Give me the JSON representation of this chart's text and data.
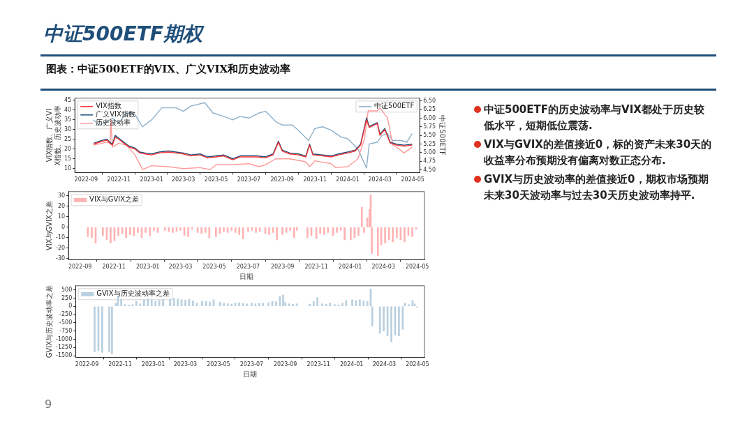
{
  "chart_data": [
    {
      "type": "line",
      "title": "中证500ETF期权",
      "subtitle": "图表：中证500ETF的VIX、广义VIX和历史波动率",
      "ylabel": "VIX指数、广义VIX指数、历史波动率",
      "y2label": "中证500ETF",
      "legend": "top left",
      "grid": false,
      "xlim": [
        "2022-08-11",
        "2024-05-14"
      ],
      "xticks": [
        "2022-09",
        "2022-11",
        "2023-01",
        "2023-03",
        "2023-05",
        "2023-07",
        "2023-09",
        "2023-11",
        "2024-01",
        "2024-03",
        "2024-05"
      ],
      "ylim": [
        8,
        46
      ],
      "yticks": [
        10,
        15,
        20,
        25,
        30,
        35,
        40,
        45
      ],
      "y2lim": [
        4.42,
        6.58
      ],
      "y2ticks": [
        {
          "value": 4.5,
          "label": "4.50"
        },
        {
          "value": 4.75,
          "label": "4.75"
        },
        {
          "value": 5,
          "label": "5.00"
        },
        {
          "value": 5.25,
          "label": "5.25"
        },
        {
          "value": 5.5,
          "label": "5.50"
        },
        {
          "value": 5.75,
          "label": "5.75"
        },
        {
          "value": 6,
          "label": "6.00"
        },
        {
          "value": 6.25,
          "label": "6.25"
        },
        {
          "value": 6.5,
          "label": "6.50"
        }
      ],
      "series": [
        {
          "name": "VIX指数",
          "color": "#ff3333",
          "x": [
            "2022-09-15",
            "2022-10-01",
            "2022-10-10",
            "2022-10-15",
            "2022-10-20",
            "2022-10-25",
            "2022-11-01",
            "2022-11-10",
            "2022-11-20",
            "2022-12-01",
            "2022-12-10",
            "2022-12-20",
            "2023-01-01",
            "2023-01-15",
            "2023-02-01",
            "2023-02-15",
            "2023-03-01",
            "2023-03-15",
            "2023-04-01",
            "2023-04-15",
            "2023-05-01",
            "2023-05-15",
            "2023-06-01",
            "2023-06-15",
            "2023-07-01",
            "2023-07-15",
            "2023-08-01",
            "2023-08-15",
            "2023-08-25",
            "2023-09-01",
            "2023-09-15",
            "2023-10-01",
            "2023-10-15",
            "2023-10-22",
            "2023-10-28",
            "2023-11-15",
            "2023-12-01",
            "2023-12-15",
            "2024-01-01",
            "2024-01-15",
            "2024-01-25",
            "2024-02-05",
            "2024-02-10",
            "2024-02-25",
            "2024-03-01",
            "2024-03-10",
            "2024-03-20",
            "2024-04-01",
            "2024-04-15",
            "2024-04-30"
          ],
          "values": [
            22.5,
            24,
            24.5,
            23,
            22,
            26,
            25,
            23,
            21,
            20,
            18,
            17.5,
            17,
            18,
            18.5,
            18,
            17.5,
            16.5,
            17,
            15.5,
            16,
            16.5,
            14.5,
            16,
            16,
            16,
            15.5,
            17,
            23.5,
            19,
            17.5,
            17,
            16,
            22,
            17,
            16.5,
            16,
            17,
            18,
            19,
            22,
            35,
            31,
            33,
            27,
            30,
            23,
            22,
            21.5,
            22
          ]
        },
        {
          "name": "广义VIX指数",
          "color": "#1f4e79",
          "x": [
            "2022-09-15",
            "2022-10-01",
            "2022-10-10",
            "2022-10-15",
            "2022-10-20",
            "2022-10-25",
            "2022-11-01",
            "2022-11-10",
            "2022-11-20",
            "2022-12-01",
            "2022-12-10",
            "2022-12-20",
            "2023-01-01",
            "2023-01-15",
            "2023-02-01",
            "2023-02-15",
            "2023-03-01",
            "2023-03-15",
            "2023-04-01",
            "2023-04-15",
            "2023-05-01",
            "2023-05-15",
            "2023-06-01",
            "2023-06-15",
            "2023-07-01",
            "2023-07-15",
            "2023-08-01",
            "2023-08-15",
            "2023-08-25",
            "2023-09-01",
            "2023-09-15",
            "2023-10-01",
            "2023-10-15",
            "2023-10-22",
            "2023-10-28",
            "2023-11-15",
            "2023-12-01",
            "2023-12-15",
            "2024-01-01",
            "2024-01-15",
            "2024-01-25",
            "2024-02-05",
            "2024-02-10",
            "2024-02-25",
            "2024-03-01",
            "2024-03-10",
            "2024-03-20",
            "2024-04-01",
            "2024-04-15",
            "2024-04-30"
          ],
          "values": [
            23,
            24.5,
            25,
            23.5,
            22.5,
            27,
            25.5,
            23.5,
            21.5,
            20.5,
            18.5,
            18,
            17.5,
            18.5,
            19,
            18.5,
            18,
            17,
            17.5,
            16,
            16.5,
            17,
            15,
            16.5,
            16.5,
            16.5,
            16,
            17.5,
            24,
            19.5,
            18,
            17.5,
            16.5,
            22.5,
            17.5,
            17,
            16.5,
            17.5,
            18.5,
            19.5,
            22.5,
            36,
            31.5,
            33.5,
            27.5,
            30.5,
            23.5,
            22.5,
            22,
            22.5
          ]
        },
        {
          "name": "历史波动率",
          "color": "#ff9999",
          "x": [
            "2022-09-15",
            "2022-10-10",
            "2022-10-16",
            "2022-10-17",
            "2022-10-20",
            "2022-11-01",
            "2022-11-15",
            "2022-12-01",
            "2022-12-15",
            "2023-01-01",
            "2023-02-01",
            "2023-03-01",
            "2023-04-01",
            "2023-04-20",
            "2023-05-01",
            "2023-06-01",
            "2023-07-01",
            "2023-07-20",
            "2023-08-01",
            "2023-08-20",
            "2023-09-15",
            "2023-10-15",
            "2023-10-22",
            "2023-11-01",
            "2023-12-01",
            "2023-12-10",
            "2024-01-01",
            "2024-01-20",
            "2024-02-01",
            "2024-02-08",
            "2024-02-25",
            "2024-03-01",
            "2024-03-15",
            "2024-03-25",
            "2024-04-01",
            "2024-04-15",
            "2024-04-30"
          ],
          "values": [
            22,
            23.5,
            23,
            35,
            21,
            23,
            22,
            17,
            9.5,
            11.5,
            11,
            10,
            10.5,
            9.5,
            12,
            12,
            12.5,
            11,
            12,
            15,
            15,
            13.5,
            11,
            14,
            12.5,
            10.5,
            11,
            15,
            25,
            39.5,
            39.5,
            41,
            36,
            22,
            21,
            18,
            21
          ]
        },
        {
          "name": "中证500ETF",
          "color": "#8fb0c8",
          "axis": "y2",
          "x": [
            "2022-09-15",
            "2022-09-25",
            "2022-10-10",
            "2022-10-20",
            "2022-11-01",
            "2022-11-15",
            "2022-12-01",
            "2022-12-15",
            "2023-01-01",
            "2023-01-20",
            "2023-02-15",
            "2023-03-01",
            "2023-03-15",
            "2023-04-10",
            "2023-04-25",
            "2023-05-15",
            "2023-06-01",
            "2023-06-15",
            "2023-07-01",
            "2023-07-20",
            "2023-08-01",
            "2023-08-20",
            "2023-09-01",
            "2023-09-20",
            "2023-10-01",
            "2023-10-20",
            "2023-11-01",
            "2023-11-15",
            "2023-12-01",
            "2023-12-20",
            "2024-01-01",
            "2024-01-20",
            "2024-02-05",
            "2024-02-10",
            "2024-02-25",
            "2024-03-05",
            "2024-03-15",
            "2024-03-25",
            "2024-04-10",
            "2024-04-20",
            "2024-04-30"
          ],
          "values": [
            5.95,
            5.8,
            5.9,
            6.0,
            5.85,
            6.15,
            6.1,
            5.75,
            5.95,
            6.3,
            6.3,
            6.2,
            6.35,
            6.45,
            6.15,
            6.05,
            5.95,
            6.05,
            6.0,
            6.15,
            6.2,
            5.9,
            5.8,
            5.8,
            5.65,
            5.35,
            5.7,
            5.75,
            5.65,
            5.45,
            5.4,
            5.1,
            4.55,
            5.25,
            5.3,
            5.5,
            5.55,
            5.35,
            5.35,
            5.3,
            5.55
          ]
        }
      ]
    },
    {
      "type": "bar",
      "xlabel": "日期",
      "ylabel": "VIX与GVIX之差",
      "legend": "top left",
      "grid": false,
      "xlim": [
        "2022-08-11",
        "2024-05-14"
      ],
      "xticks": [
        "2022-09",
        "2022-11",
        "2023-01",
        "2023-03",
        "2023-05",
        "2023-07",
        "2023-09",
        "2023-11",
        "2024-01",
        "2024-03",
        "2024-05"
      ],
      "ylim": [
        -31,
        34
      ],
      "yticks": [
        -30,
        -20,
        -10,
        0,
        10,
        20,
        30
      ],
      "series": [
        {
          "name": "VIX与GVIX之差",
          "color": "#ffb3b3",
          "x": [
            "2022-09-15",
            "2022-09-22",
            "2022-09-29",
            "2022-10-12",
            "2022-10-19",
            "2022-10-26",
            "2022-11-02",
            "2022-11-09",
            "2022-11-16",
            "2022-11-23",
            "2022-11-30",
            "2022-12-07",
            "2022-12-14",
            "2022-12-21",
            "2022-12-28",
            "2023-01-05",
            "2023-01-12",
            "2023-01-19",
            "2023-02-01",
            "2023-02-08",
            "2023-02-15",
            "2023-02-22",
            "2023-03-01",
            "2023-03-08",
            "2023-03-15",
            "2023-03-22",
            "2023-04-01",
            "2023-04-08",
            "2023-04-15",
            "2023-04-22",
            "2023-05-04",
            "2023-05-11",
            "2023-05-18",
            "2023-05-25",
            "2023-06-01",
            "2023-06-08",
            "2023-06-15",
            "2023-06-22",
            "2023-07-01",
            "2023-07-08",
            "2023-07-15",
            "2023-07-22",
            "2023-08-01",
            "2023-08-08",
            "2023-08-15",
            "2023-08-22",
            "2023-09-01",
            "2023-09-08",
            "2023-09-15",
            "2023-09-22",
            "2023-09-27",
            "2023-10-16",
            "2023-10-23",
            "2023-11-01",
            "2023-11-08",
            "2023-11-15",
            "2023-11-22",
            "2023-12-01",
            "2023-12-08",
            "2023-12-15",
            "2023-12-22",
            "2024-01-02",
            "2024-01-09",
            "2024-01-16",
            "2024-01-22",
            "2024-01-26",
            "2024-02-01",
            "2024-02-05",
            "2024-02-07",
            "2024-02-09",
            "2024-02-20",
            "2024-02-26",
            "2024-03-04",
            "2024-03-11",
            "2024-03-18",
            "2024-03-25",
            "2024-04-01",
            "2024-04-08",
            "2024-04-15",
            "2024-04-22",
            "2024-04-29"
          ],
          "values": [
            -9,
            -10,
            -15,
            -8,
            -12,
            -15,
            -13,
            -8,
            -6,
            -10,
            -7,
            -8,
            -5,
            -10,
            -5,
            -8,
            -3,
            -5,
            -3,
            -4,
            -5,
            -4,
            -3,
            -8,
            -9,
            -2,
            -5,
            -6,
            -5,
            -10,
            -9,
            -6,
            -4,
            -5,
            -3,
            -5,
            -7,
            -11,
            -4,
            -3,
            -5,
            -4,
            -6,
            -7,
            -5,
            -12,
            -7,
            -5,
            -3,
            -10,
            -3,
            -10,
            -8,
            -11,
            -6,
            -7,
            -5,
            -8,
            -5,
            -3,
            -12,
            -12,
            -10,
            -8,
            19,
            -5,
            9,
            17,
            31,
            -25,
            -27,
            -17,
            -15,
            -12,
            -14,
            -10,
            -12,
            -14,
            -8,
            -9,
            -2
          ]
        }
      ]
    },
    {
      "type": "bar",
      "xlabel": "日期",
      "ylabel": "GVIX与历史波动率之差",
      "legend": "top left",
      "grid": false,
      "xlim": [
        "2022-08-11",
        "2024-05-14"
      ],
      "xticks": [
        "2022-09",
        "2022-11",
        "2023-01",
        "2023-03",
        "2023-05",
        "2023-07",
        "2023-09",
        "2023-11",
        "2024-01",
        "2024-03",
        "2024-05"
      ],
      "ylim": [
        -1550,
        625
      ],
      "yticks": [
        -1500,
        -1250,
        -1000,
        -750,
        -500,
        -250,
        0,
        250,
        500
      ],
      "series": [
        {
          "name": "GVIX与历史波动率之差",
          "color": "#b8cfe0",
          "x": [
            "2022-09-15",
            "2022-09-22",
            "2022-09-29",
            "2022-10-12",
            "2022-10-17",
            "2022-10-24",
            "2022-10-28",
            "2022-11-03",
            "2022-11-10",
            "2022-11-17",
            "2022-11-24",
            "2022-12-01",
            "2022-12-08",
            "2022-12-15",
            "2022-12-22",
            "2022-12-29",
            "2023-01-05",
            "2023-01-12",
            "2023-01-19",
            "2023-02-01",
            "2023-02-08",
            "2023-02-15",
            "2023-02-22",
            "2023-03-01",
            "2023-03-08",
            "2023-03-15",
            "2023-03-22",
            "2023-04-01",
            "2023-04-08",
            "2023-04-15",
            "2023-04-22",
            "2023-05-04",
            "2023-05-11",
            "2023-05-18",
            "2023-05-25",
            "2023-06-01",
            "2023-06-08",
            "2023-06-15",
            "2023-06-22",
            "2023-07-01",
            "2023-07-08",
            "2023-07-15",
            "2023-07-22",
            "2023-08-01",
            "2023-08-08",
            "2023-08-15",
            "2023-08-22",
            "2023-08-28",
            "2023-09-01",
            "2023-09-08",
            "2023-09-15",
            "2023-09-22",
            "2023-10-16",
            "2023-10-23",
            "2023-10-30",
            "2023-11-08",
            "2023-11-15",
            "2023-11-22",
            "2023-12-01",
            "2023-12-08",
            "2023-12-15",
            "2023-12-22",
            "2024-01-02",
            "2024-01-09",
            "2024-01-16",
            "2024-01-23",
            "2024-01-30",
            "2024-02-05",
            "2024-02-08",
            "2024-02-22",
            "2024-02-29",
            "2024-03-07",
            "2024-03-14",
            "2024-03-21",
            "2024-03-28",
            "2024-04-04",
            "2024-04-08",
            "2024-04-15",
            "2024-04-22",
            "2024-04-26",
            "2024-04-30"
          ],
          "values": [
            -1380,
            -1350,
            -1400,
            -1380,
            -1450,
            100,
            300,
            220,
            50,
            40,
            50,
            150,
            80,
            200,
            220,
            200,
            150,
            180,
            210,
            220,
            250,
            220,
            200,
            190,
            210,
            170,
            100,
            160,
            150,
            130,
            200,
            130,
            100,
            80,
            70,
            100,
            110,
            90,
            80,
            100,
            80,
            90,
            100,
            110,
            150,
            140,
            300,
            350,
            120,
            80,
            60,
            80,
            70,
            150,
            270,
            80,
            70,
            100,
            50,
            40,
            100,
            180,
            200,
            180,
            200,
            170,
            150,
            530,
            -600,
            -820,
            -750,
            -900,
            -1080,
            -880,
            -900,
            -700,
            100,
            50,
            180,
            80,
            -30
          ]
        }
      ]
    },
    {
      "type": "other",
      "annotations": [
        "中证500ETF的历史波动率与VIX都处于历史较低水平，短期低位震荡.",
        "VIX与GVIX的差值接近0，标的资产未来30天的收益率分布预期没有偏离对数正态分布.",
        "GVIX与历史波动率的差值接近0，期权市场预期未来30天波动率与过去30天历史波动率持平.",
        "9"
      ]
    }
  ]
}
